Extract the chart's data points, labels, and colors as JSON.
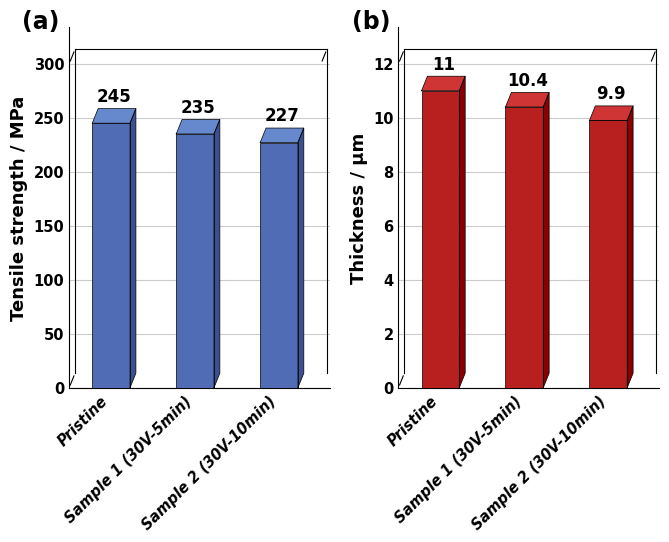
{
  "chart_a": {
    "categories": [
      "Pristine",
      "Sample 1 (30V-5min)",
      "Sample 2 (30V-10min)"
    ],
    "values": [
      245,
      235,
      227
    ],
    "bar_color": "#4F6CB5",
    "bar_top_color": "#6688CC",
    "bar_side_color": "#3A5090",
    "ylabel": "Tensile strength / MPa",
    "ylim": [
      0,
      300
    ],
    "yticks": [
      0,
      50,
      100,
      150,
      200,
      250,
      300
    ],
    "label": "(a)"
  },
  "chart_b": {
    "categories": [
      "Pristine",
      "Sample 1 (30V-5min)",
      "Sample 2 (30V-10min)"
    ],
    "values": [
      11,
      10.4,
      9.9
    ],
    "bar_color": "#B82020",
    "bar_top_color": "#D03535",
    "bar_side_color": "#880000",
    "ylabel": "Thickness / μm",
    "ylim": [
      0,
      12
    ],
    "yticks": [
      0,
      2,
      4,
      6,
      8,
      10,
      12
    ],
    "label": "(b)"
  },
  "label_fontsize": 13,
  "tick_fontsize": 10.5,
  "annotation_fontsize": 12,
  "panel_label_fontsize": 17,
  "background_color": "#ffffff",
  "grid_color": "#cccccc",
  "bar_width": 0.45
}
